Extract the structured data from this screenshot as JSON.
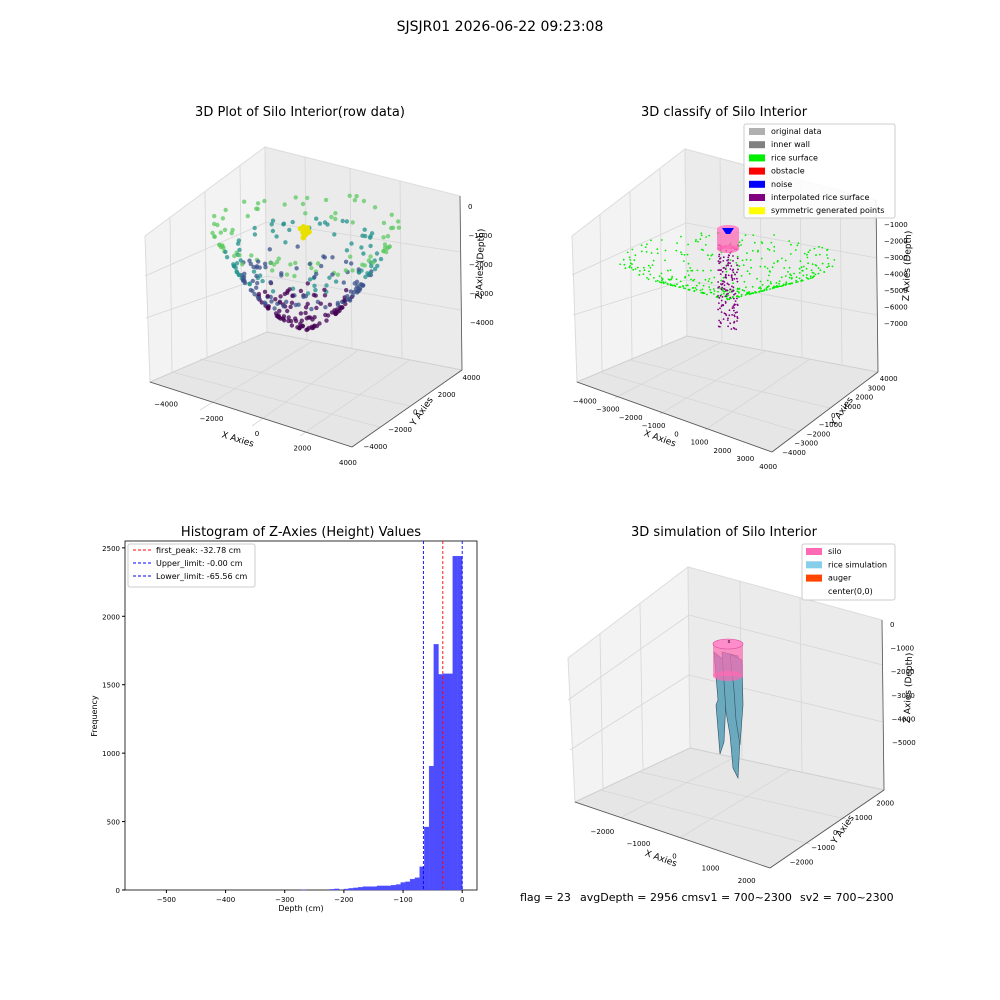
{
  "figure": {
    "suptitle": "SJSJR01 2026-06-22 09:23:08",
    "footer": {
      "flag": "flag = 23",
      "avg": "avgDepth = 2956 cmsv1 = 700~2300",
      "sv2": "sv2 = 700~2300"
    }
  },
  "chart_data": [
    {
      "type": "scatter",
      "title": "3D Plot of Silo Interior(row data)",
      "xlabel": "X Axies",
      "ylabel": "Y Axies",
      "zlabel": "Z Axies (Depth)",
      "xticks": [
        "−4000",
        "−2000",
        "0",
        "2000",
        "4000"
      ],
      "yticks": [
        "−4000",
        "−2000",
        "0",
        "2000",
        "4000"
      ],
      "zticks": [
        "0",
        "−1000",
        "−2000",
        "−3000",
        "−4000"
      ],
      "colormap": [
        "#440154",
        "#3b528b",
        "#21918c",
        "#5ec962"
      ],
      "highlight_color": "#e8e000"
    },
    {
      "type": "scatter",
      "title": "3D classify of Silo Interior",
      "xlabel": "X Axies",
      "ylabel": "Y Axies",
      "zlabel": "Z Axies (Depth)",
      "xticks": [
        "−4000",
        "−3000",
        "−2000",
        "−1000",
        "0",
        "1000",
        "2000",
        "3000",
        "4000"
      ],
      "yticks": [
        "−4000",
        "−3000",
        "−2000",
        "−1000",
        "0",
        "1000",
        "2000",
        "3000",
        "4000"
      ],
      "zticks": [
        "−1000",
        "−2000",
        "−3000",
        "−4000",
        "−5000",
        "−6000",
        "−7000"
      ],
      "legend": [
        {
          "label": "original data",
          "color": "#b0b0b0"
        },
        {
          "label": "inner wall",
          "color": "#808080"
        },
        {
          "label": "rice surface",
          "color": "#00ee00"
        },
        {
          "label": "obstacle",
          "color": "#ff0000"
        },
        {
          "label": "noise",
          "color": "#0000ff"
        },
        {
          "label": "interpolated rice surface",
          "color": "#800080"
        },
        {
          "label": "symmetric generated points",
          "color": "#ffff00"
        }
      ]
    },
    {
      "type": "bar",
      "title": "Histogram of Z-Axies (Height) Values",
      "xlabel": "Depth (cm)",
      "ylabel": "Frequency",
      "xlim": [
        -570,
        25
      ],
      "ylim": [
        0,
        2550
      ],
      "xticks": [
        -500,
        -400,
        -300,
        -200,
        -100,
        0
      ],
      "yticks": [
        0,
        500,
        1000,
        1500,
        2000,
        2500
      ],
      "bar_color": "#4d4dff",
      "bin_width": 8,
      "bins": [
        {
          "x": -264,
          "value": 3
        },
        {
          "x": -216,
          "value": 5
        },
        {
          "x": -208,
          "value": 8
        },
        {
          "x": -192,
          "value": 7
        },
        {
          "x": -184,
          "value": 12
        },
        {
          "x": -176,
          "value": 15
        },
        {
          "x": -168,
          "value": 20
        },
        {
          "x": -160,
          "value": 25
        },
        {
          "x": -152,
          "value": 25
        },
        {
          "x": -144,
          "value": 25
        },
        {
          "x": -136,
          "value": 30
        },
        {
          "x": -128,
          "value": 30
        },
        {
          "x": -120,
          "value": 30
        },
        {
          "x": -112,
          "value": 35
        },
        {
          "x": -104,
          "value": 40
        },
        {
          "x": -96,
          "value": 55
        },
        {
          "x": -88,
          "value": 60
        },
        {
          "x": -80,
          "value": 80
        },
        {
          "x": -72,
          "value": 90
        },
        {
          "x": -64,
          "value": 170
        },
        {
          "x": -56,
          "value": 460
        },
        {
          "x": -48,
          "value": 905
        },
        {
          "x": -40,
          "value": 1795
        },
        {
          "x": -32,
          "value": 1575
        },
        {
          "x": -24,
          "value": 1580
        },
        {
          "x": -16,
          "value": 1580
        },
        {
          "x": -8,
          "value": 2440
        },
        {
          "x": 0,
          "value": 2440
        }
      ],
      "vlines": [
        {
          "x": -32.78,
          "color": "#ff0000",
          "label": "first_peak: -32.78 cm"
        },
        {
          "x": -0.0,
          "color": "#0000ff",
          "label": "Upper_limit: -0.00 cm"
        },
        {
          "x": -65.56,
          "color": "#0000ff",
          "label": "Lower_limit: -65.56 cm"
        }
      ],
      "legend_position": "top-left"
    },
    {
      "type": "surface",
      "title": "3D simulation of Silo Interior",
      "xlabel": "X Axies",
      "ylabel": "Y Axies",
      "zlabel": "Z Axies (Depth)",
      "xticks": [
        "−2000",
        "−1000",
        "0",
        "1000",
        "2000"
      ],
      "yticks": [
        "−2000",
        "−1000",
        "0",
        "1000",
        "2000"
      ],
      "zticks": [
        "0",
        "−1000",
        "−2000",
        "−3000",
        "−4000",
        "−5000"
      ],
      "legend": [
        {
          "label": "silo",
          "color": "#ff69b4"
        },
        {
          "label": "rice simulation",
          "color": "#87ceeb"
        },
        {
          "label": "auger",
          "color": "#ff4500"
        },
        {
          "label": "center(0,0)",
          "color": "#ffffff"
        }
      ]
    }
  ]
}
